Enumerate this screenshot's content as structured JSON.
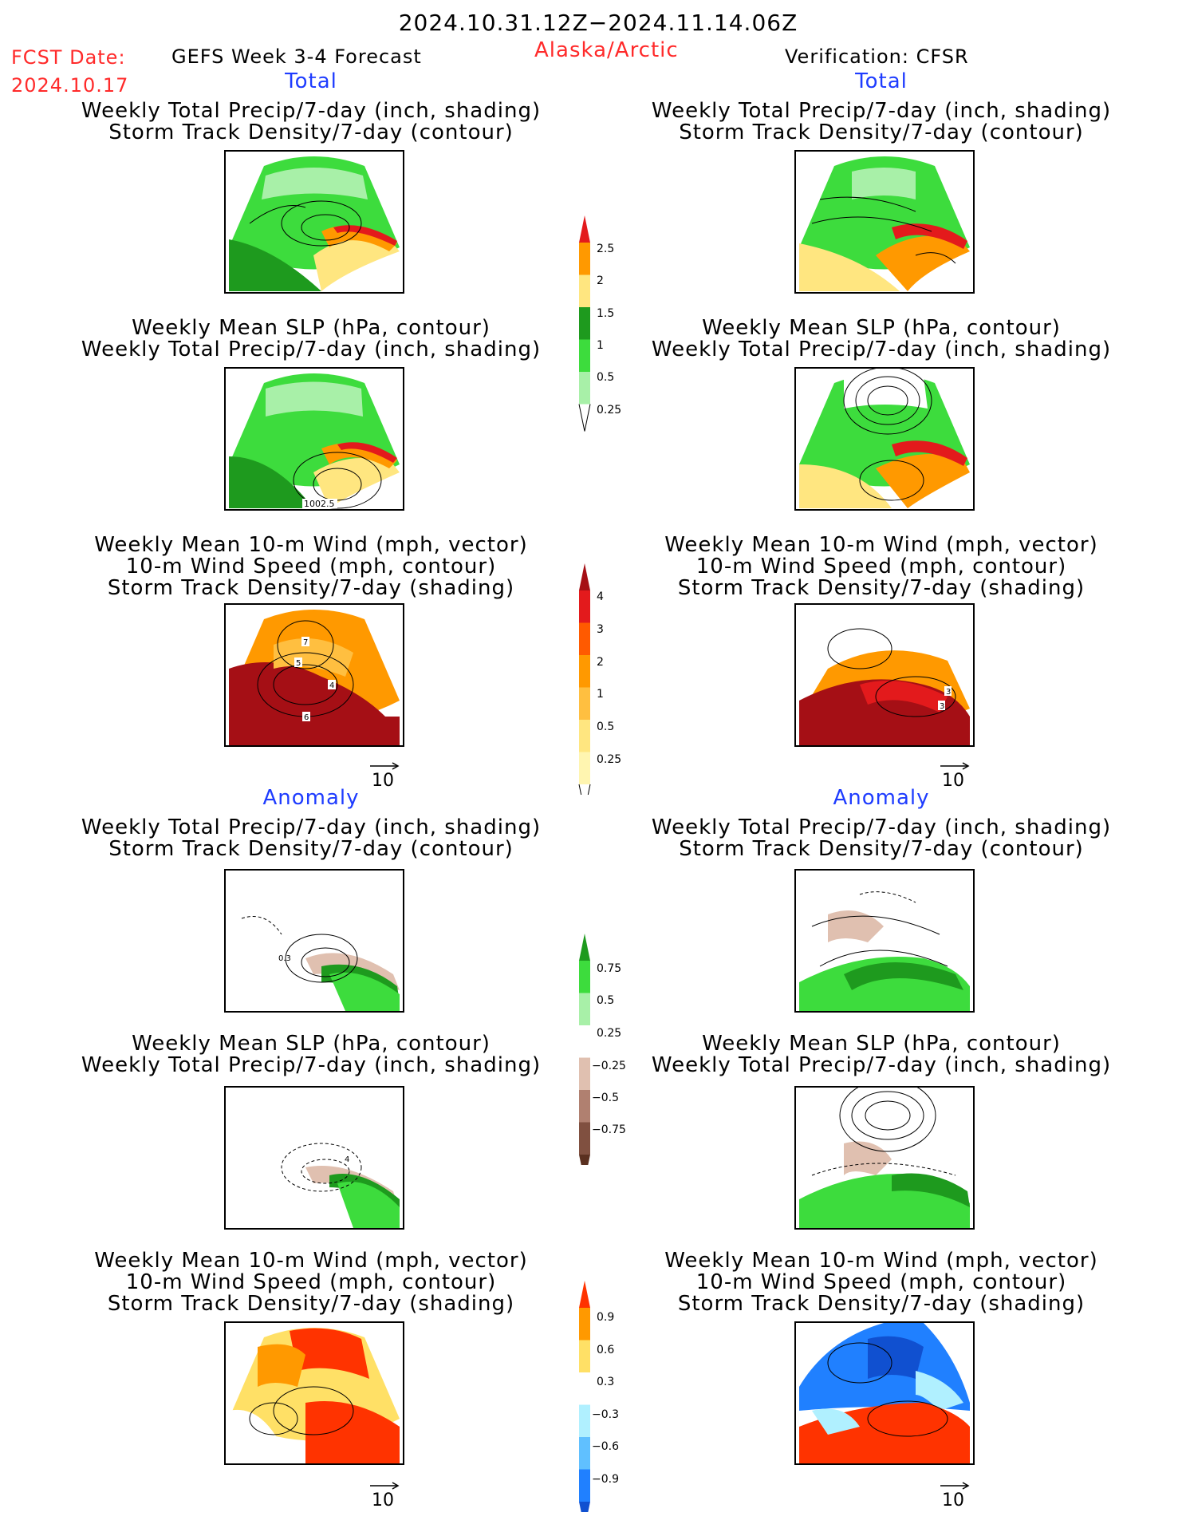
{
  "header": {
    "date_range": "2024.10.31.12Z−2024.11.14.06Z",
    "fcst_label": "FCST Date:",
    "fcst_date": "2024.10.17",
    "product": "GEFS Week 3-4 Forecast",
    "region": "Alaska/Arctic",
    "verification": "Verification: CFSR"
  },
  "sections": {
    "total_left": "Total",
    "total_right": "Total",
    "anomaly_left": "Anomaly",
    "anomaly_right": "Anomaly"
  },
  "titles": {
    "precip_storm": [
      "Weekly Total Precip/7-day (inch, shading)",
      "Storm Track Density/7-day (contour)"
    ],
    "slp_precip": [
      "Weekly Mean SLP (hPa, contour)",
      "Weekly Total Precip/7-day (inch, shading)"
    ],
    "wind_storm": [
      "Weekly Mean 10-m Wind (mph, vector)",
      "10-m Wind Speed (mph, contour)",
      "Storm Track Density/7-day (shading)"
    ]
  },
  "panel_labels": {
    "slp_total_left": "1002.5",
    "wind_total_left": [
      "7",
      "5",
      "4",
      "6"
    ],
    "wind_total_right": [
      "3",
      "3"
    ],
    "precip_anom_left": "0.3",
    "slp_anom_left": "4"
  },
  "vector_reference": "10",
  "colorbars": {
    "precip_total": {
      "labels": [
        "2.5",
        "2",
        "1.5",
        "1",
        "0.5",
        "0.25"
      ],
      "colors": [
        "#e31a1c",
        "#ff9900",
        "#ffe680",
        "#1e9a1e",
        "#3ddc3d",
        "#a8f0a8"
      ]
    },
    "storm_total": {
      "labels": [
        "4",
        "3",
        "2",
        "1",
        "0.5",
        "0.25"
      ],
      "colors": [
        "#a50f15",
        "#e31a1c",
        "#ff5a00",
        "#ff9900",
        "#ffbf40",
        "#ffe680",
        "#fff5b0"
      ]
    },
    "precip_anom": {
      "labels": [
        "0.75",
        "0.5",
        "0.25",
        "−0.25",
        "−0.5",
        "−0.75"
      ],
      "colors": [
        "#1e9a1e",
        "#3ddc3d",
        "#a8f0a8",
        "#ffffff",
        "#e0c0b0",
        "#b08070",
        "#805040",
        "#5a3020"
      ]
    },
    "storm_anom": {
      "labels": [
        "0.9",
        "0.6",
        "0.3",
        "−0.3",
        "−0.6",
        "−0.9"
      ],
      "colors": [
        "#ff3300",
        "#ff9900",
        "#ffe066",
        "#ffffff",
        "#b0f0ff",
        "#60c0ff",
        "#2080ff",
        "#1050d0"
      ]
    }
  }
}
